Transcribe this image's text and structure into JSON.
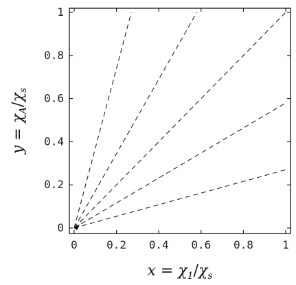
{
  "chart_data": {
    "type": "line",
    "title": "",
    "xlabel": "x = χ₁/χₛ",
    "ylabel": "y = χ_A/χₛ",
    "xlabel_parts": {
      "var": "x",
      "eq": " = ",
      "num": "χ",
      "num_sub": "1",
      "slash": "/",
      "den": "χ",
      "den_sub": "s"
    },
    "ylabel_parts": {
      "var": "y",
      "eq": " = ",
      "num": "χ",
      "num_sub": "A",
      "slash": "/",
      "den": "χ",
      "den_sub": "s"
    },
    "xlim": [
      0,
      1
    ],
    "ylim": [
      0,
      1
    ],
    "xticks": [
      0,
      0.2,
      0.4,
      0.6,
      0.8,
      1
    ],
    "yticks": [
      0,
      0.2,
      0.4,
      0.6,
      0.8,
      1
    ],
    "xtick_labels": [
      "0",
      "0.2",
      "0.4",
      "0.6",
      "0.8",
      "1"
    ],
    "ytick_labels": [
      "0",
      "0.2",
      "0.4",
      "0.6",
      "0.8",
      "1"
    ],
    "grid": false,
    "series": [
      {
        "x": [
          0,
          0.27
        ],
        "y": [
          0,
          1
        ]
      },
      {
        "x": [
          0,
          0.58
        ],
        "y": [
          0,
          1
        ]
      },
      {
        "x": [
          0,
          1
        ],
        "y": [
          0,
          1
        ]
      },
      {
        "x": [
          0,
          1
        ],
        "y": [
          0,
          0.58
        ]
      },
      {
        "x": [
          0,
          1
        ],
        "y": [
          0,
          0.27
        ]
      }
    ],
    "line_style": "dashed",
    "line_color": "#222222"
  }
}
